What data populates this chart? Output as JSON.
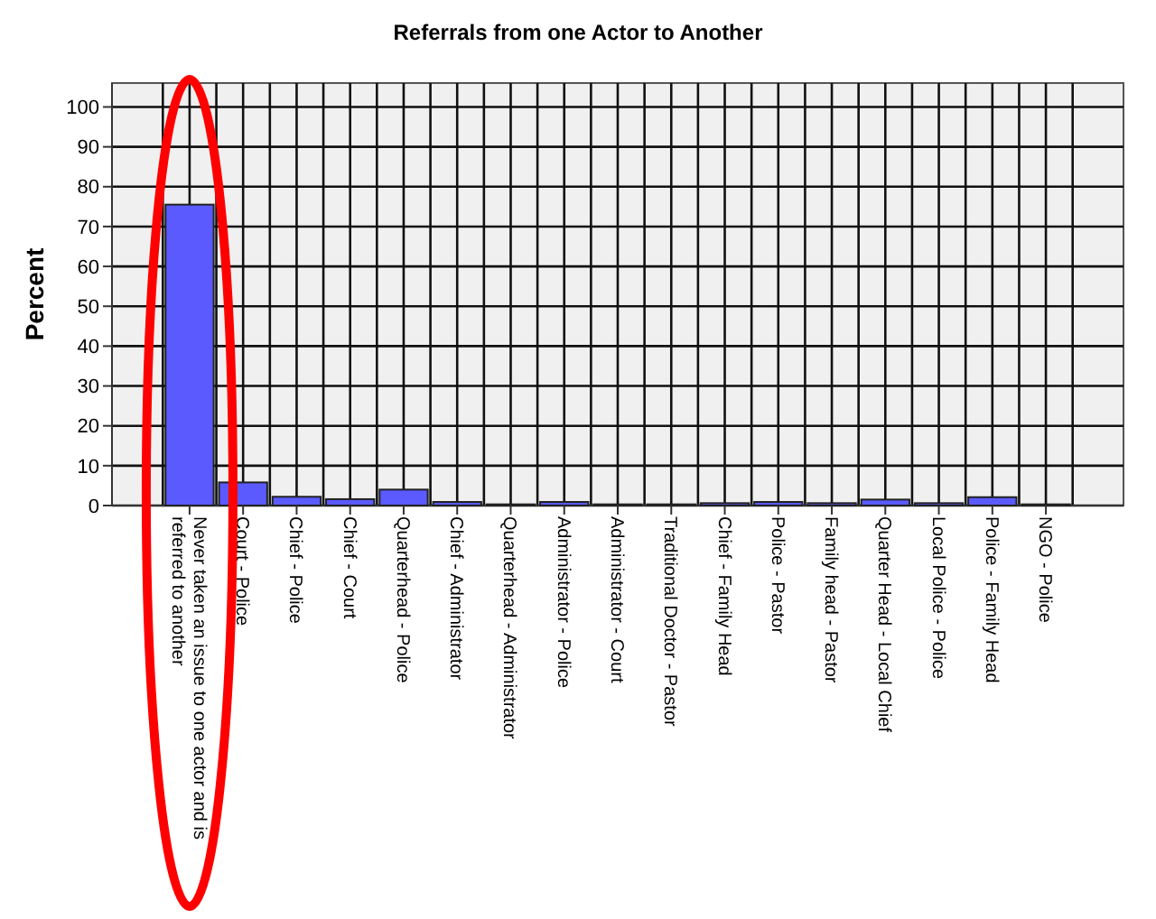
{
  "chart_data": {
    "type": "bar",
    "title": "Referrals from one Actor to Another",
    "ylabel": "Percent",
    "categories": [
      "Never taken an issue to one actor and is referred to another",
      "Court - Police",
      "Chief - Police",
      "Chief - Court",
      "Quarterhead - Police",
      "Chief - Administrator",
      "Quarterhead - Administrator",
      "Administrator - Police",
      "Administrator - Court",
      "Traditional Doctor - Pastor",
      "Chief - Family Head",
      "Police - Pastor",
      "Family head - Pastor",
      "Quarter Head - Local Chief",
      "Local Police - Police",
      "Police - Family Head",
      "NGO - Police"
    ],
    "values": [
      75.5,
      5.8,
      2.2,
      1.6,
      4.0,
      0.9,
      0.3,
      0.9,
      0.3,
      0.3,
      0.6,
      0.9,
      0.6,
      1.5,
      0.6,
      2.1,
      0.3
    ],
    "color": "#5a5aff",
    "ylim": [
      0,
      106
    ],
    "yticks": [
      0,
      10,
      20,
      30,
      40,
      50,
      60,
      70,
      80,
      90,
      100
    ],
    "grid": true
  }
}
